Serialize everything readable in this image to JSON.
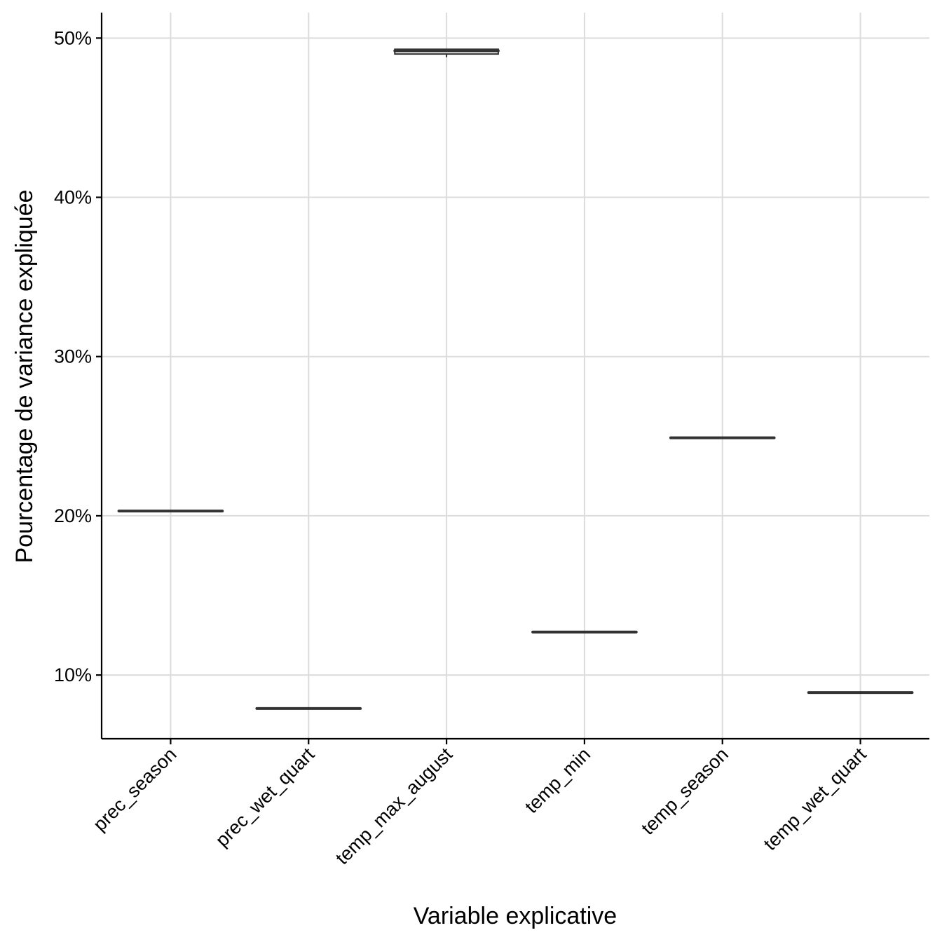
{
  "chart_data": {
    "type": "box",
    "title": "",
    "xlabel": "Variable explicative",
    "ylabel": "Pourcentage de variance expliquée",
    "categories": [
      "prec_season",
      "prec_wet_quart",
      "temp_max_august",
      "temp_min",
      "temp_season",
      "temp_wet_quart"
    ],
    "y_ticks": [
      {
        "value": 10,
        "label": "10%"
      },
      {
        "value": 20,
        "label": "20%"
      },
      {
        "value": 30,
        "label": "30%"
      },
      {
        "value": 40,
        "label": "40%"
      },
      {
        "value": 50,
        "label": "50%"
      }
    ],
    "ylim": [
      6,
      51.6
    ],
    "boxes": [
      {
        "category": "prec_season",
        "q1": 20.3,
        "median": 20.3,
        "q3": 20.3,
        "min": 20.3,
        "max": 20.3
      },
      {
        "category": "prec_wet_quart",
        "q1": 7.9,
        "median": 7.9,
        "q3": 7.9,
        "min": 7.9,
        "max": 7.9
      },
      {
        "category": "temp_max_august",
        "q1": 49.0,
        "median": 49.2,
        "q3": 49.3,
        "min": 48.8,
        "max": 49.3
      },
      {
        "category": "temp_min",
        "q1": 12.7,
        "median": 12.7,
        "q3": 12.7,
        "min": 12.7,
        "max": 12.7
      },
      {
        "category": "temp_season",
        "q1": 24.9,
        "median": 24.9,
        "q3": 24.9,
        "min": 24.9,
        "max": 24.9
      },
      {
        "category": "temp_wet_quart",
        "q1": 8.9,
        "median": 8.9,
        "q3": 8.9,
        "min": 8.9,
        "max": 8.9
      }
    ],
    "grid": true,
    "legend": "none",
    "colors": {
      "box": "#333333",
      "grid": "#dcdcdc",
      "axis": "#000000"
    }
  }
}
